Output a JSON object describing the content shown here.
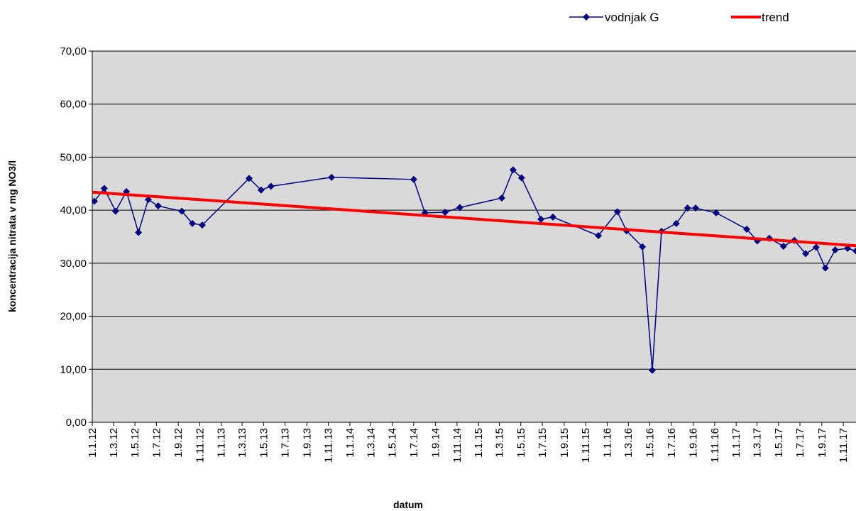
{
  "chart_data": {
    "type": "line",
    "ylabel": "koncentracija nitrata v mg NO3/l",
    "xlabel": "datum",
    "legend": "top-right",
    "grid": true,
    "ylim": [
      0,
      70
    ],
    "yticks": [
      {
        "value": 0,
        "label": "0,00"
      },
      {
        "value": 10,
        "label": "10,00"
      },
      {
        "value": 20,
        "label": "20,00"
      },
      {
        "value": 30,
        "label": "30,00"
      },
      {
        "value": 40,
        "label": "40,00"
      },
      {
        "value": 50,
        "label": "50,00"
      },
      {
        "value": 60,
        "label": "60,00"
      },
      {
        "value": 70,
        "label": "70,00"
      }
    ],
    "xlim": [
      "2012-01-01",
      "2017-12-07"
    ],
    "xticks": [
      {
        "value": "2012-01-01",
        "label": "1.1.12"
      },
      {
        "value": "2012-03-01",
        "label": "1.3.12"
      },
      {
        "value": "2012-05-01",
        "label": "1.5.12"
      },
      {
        "value": "2012-07-01",
        "label": "1.7.12"
      },
      {
        "value": "2012-09-01",
        "label": "1.9.12"
      },
      {
        "value": "2012-11-01",
        "label": "1.11.12"
      },
      {
        "value": "2013-01-01",
        "label": "1.1.13"
      },
      {
        "value": "2013-03-01",
        "label": "1.3.13"
      },
      {
        "value": "2013-05-01",
        "label": "1.5.13"
      },
      {
        "value": "2013-07-01",
        "label": "1.7.13"
      },
      {
        "value": "2013-09-01",
        "label": "1.9.13"
      },
      {
        "value": "2013-11-01",
        "label": "1.11.13"
      },
      {
        "value": "2014-01-01",
        "label": "1.1.14"
      },
      {
        "value": "2014-03-01",
        "label": "1.3.14"
      },
      {
        "value": "2014-05-01",
        "label": "1.5.14"
      },
      {
        "value": "2014-07-01",
        "label": "1.7.14"
      },
      {
        "value": "2014-09-01",
        "label": "1.9.14"
      },
      {
        "value": "2014-11-01",
        "label": "1.11.14"
      },
      {
        "value": "2015-01-01",
        "label": "1.1.15"
      },
      {
        "value": "2015-03-01",
        "label": "1.3.15"
      },
      {
        "value": "2015-05-01",
        "label": "1.5.15"
      },
      {
        "value": "2015-07-01",
        "label": "1.7.15"
      },
      {
        "value": "2015-09-01",
        "label": "1.9.15"
      },
      {
        "value": "2015-11-01",
        "label": "1.11.15"
      },
      {
        "value": "2016-01-01",
        "label": "1.1.16"
      },
      {
        "value": "2016-03-01",
        "label": "1.3.16"
      },
      {
        "value": "2016-05-01",
        "label": "1.5.16"
      },
      {
        "value": "2016-07-01",
        "label": "1.7.16"
      },
      {
        "value": "2016-09-01",
        "label": "1.9.16"
      },
      {
        "value": "2016-11-01",
        "label": "1.11.16"
      },
      {
        "value": "2017-01-01",
        "label": "1.1.17"
      },
      {
        "value": "2017-03-01",
        "label": "1.3.17"
      },
      {
        "value": "2017-05-01",
        "label": "1.5.17"
      },
      {
        "value": "2017-07-01",
        "label": "1.7.17"
      },
      {
        "value": "2017-09-01",
        "label": "1.9.17"
      },
      {
        "value": "2017-11-01",
        "label": "1.11.17"
      }
    ],
    "x": [
      "2012-01-07",
      "2012-02-04",
      "2012-03-07",
      "2012-04-07",
      "2012-05-11",
      "2012-06-08",
      "2012-07-06",
      "2012-09-11",
      "2012-10-11",
      "2012-11-08",
      "2013-03-21",
      "2013-04-24",
      "2013-05-22",
      "2013-11-10",
      "2014-07-01",
      "2014-08-02",
      "2014-09-28",
      "2014-11-09",
      "2015-03-08",
      "2015-04-09",
      "2015-05-03",
      "2015-06-27",
      "2015-07-31",
      "2015-12-07",
      "2016-01-30",
      "2016-02-25",
      "2016-04-10",
      "2016-05-08",
      "2016-06-03",
      "2016-07-15",
      "2016-08-16",
      "2016-09-08",
      "2016-11-05",
      "2017-01-31",
      "2017-03-02",
      "2017-04-05",
      "2017-05-15",
      "2017-06-15",
      "2017-07-17",
      "2017-08-16",
      "2017-09-11",
      "2017-10-09",
      "2017-11-13",
      "2017-12-07"
    ],
    "series": [
      {
        "name": "vodnjak G",
        "color": "#000080",
        "marker": "diamond",
        "values": [
          41.7,
          44.1,
          39.8,
          43.5,
          35.8,
          42.0,
          40.8,
          39.8,
          37.5,
          37.2,
          46.0,
          43.8,
          44.5,
          46.2,
          45.8,
          39.5,
          39.6,
          40.5,
          42.3,
          47.6,
          46.1,
          38.3,
          38.7,
          35.2,
          39.7,
          36.1,
          33.1,
          9.8,
          36.0,
          37.5,
          40.4,
          40.4,
          39.5,
          36.4,
          34.2,
          34.7,
          33.2,
          34.3,
          31.8,
          33.0,
          29.1,
          32.5,
          32.8,
          32.3
        ]
      },
      {
        "name": "trend",
        "color": "#ff0000",
        "x": [
          "2012-01-01",
          "2017-12-07"
        ],
        "values": [
          43.4,
          33.3
        ]
      }
    ]
  }
}
